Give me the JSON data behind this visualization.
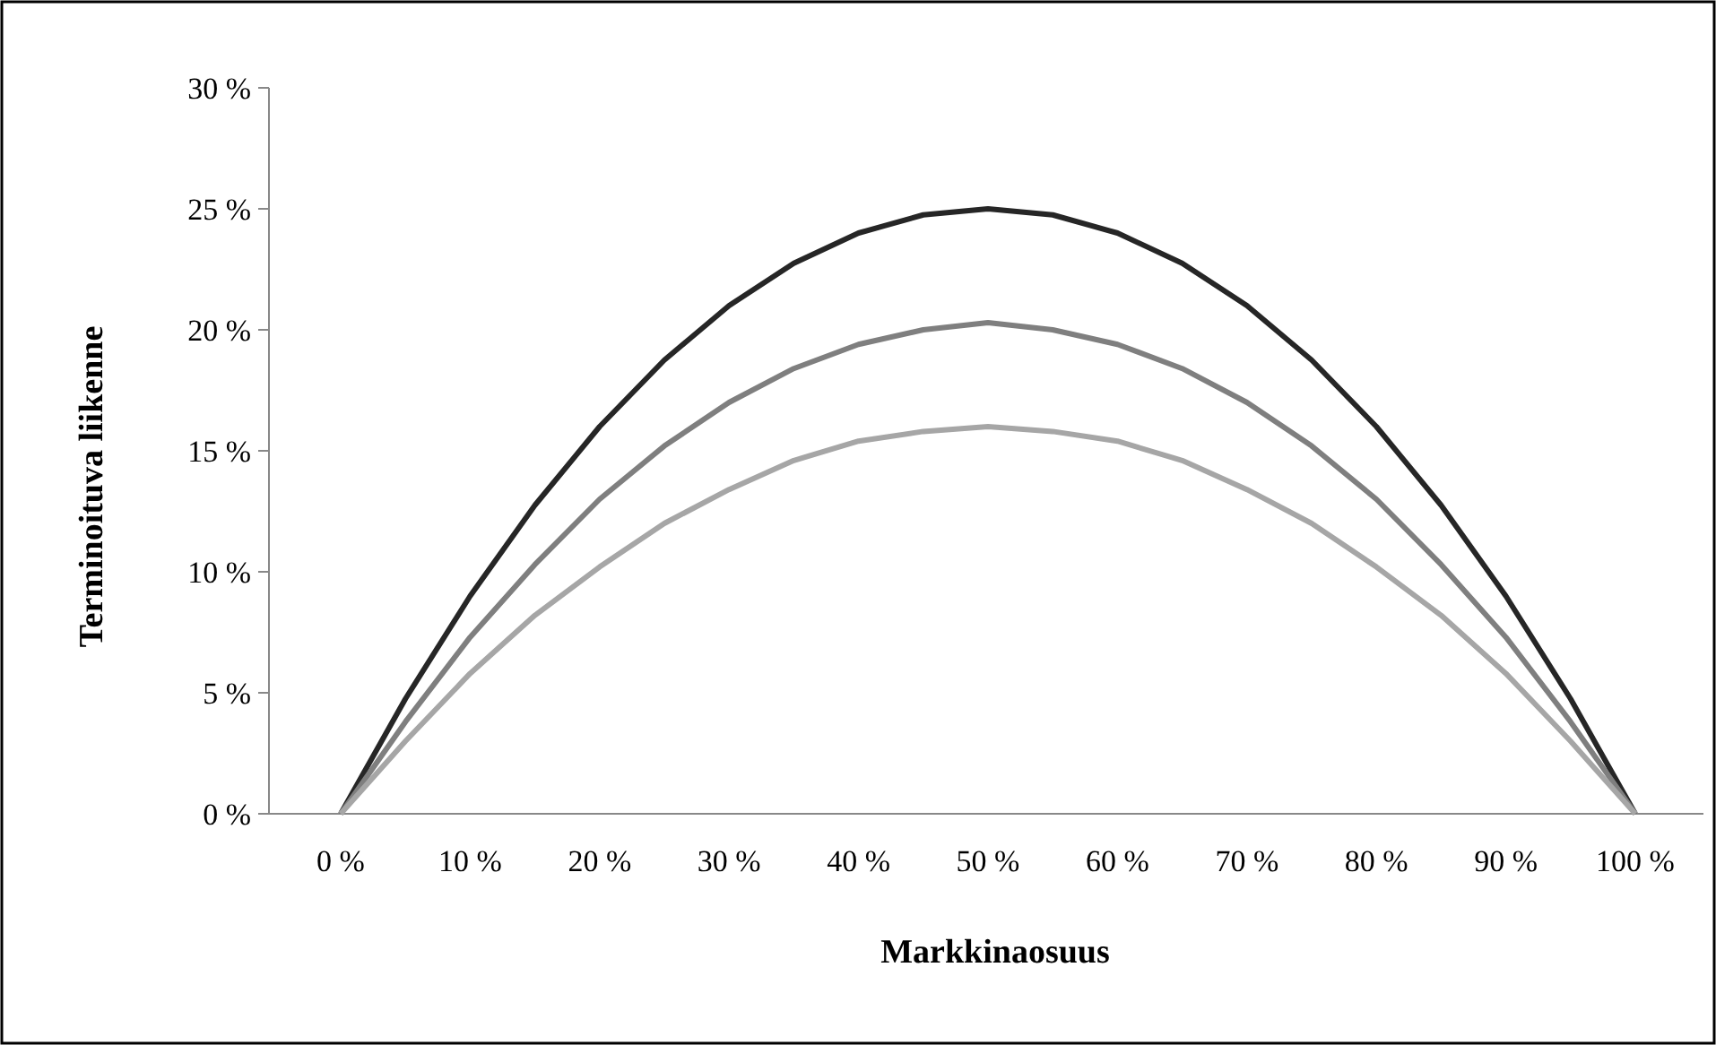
{
  "chart_data": {
    "type": "line",
    "xlabel": "Markkinaosuus",
    "ylabel": "Terminoituva liikenne",
    "categories": [
      "0 %",
      null,
      "10 %",
      null,
      "20 %",
      null,
      "30 %",
      null,
      "40 %",
      null,
      "50 %",
      null,
      "60 %",
      null,
      "70 %",
      null,
      "80 %",
      null,
      "90 %",
      null,
      "100 %"
    ],
    "series": [
      {
        "color": "#262626",
        "values": [
          0,
          4.75,
          9,
          12.75,
          16,
          18.75,
          21,
          22.75,
          24,
          24.75,
          25,
          24.75,
          24,
          22.75,
          21,
          18.75,
          16,
          12.75,
          9,
          4.75,
          0
        ]
      },
      {
        "color": "#7f7f7f",
        "values": [
          0,
          3.8,
          7.3,
          10.3,
          13,
          15.2,
          17,
          18.4,
          19.4,
          20,
          20.3,
          20,
          19.4,
          18.4,
          17,
          15.2,
          13,
          10.3,
          7.3,
          3.8,
          0
        ]
      },
      {
        "color": "#a6a6a6",
        "values": [
          0,
          3,
          5.8,
          8.2,
          10.2,
          12,
          13.4,
          14.6,
          15.4,
          15.8,
          16,
          15.8,
          15.4,
          14.6,
          13.4,
          12,
          10.2,
          8.2,
          5.8,
          3,
          0
        ]
      }
    ],
    "ylim": [
      0,
      30
    ],
    "yticks": [
      {
        "value": 0,
        "label": "0 %"
      },
      {
        "value": 5,
        "label": "5 %"
      },
      {
        "value": 10,
        "label": "10 %"
      },
      {
        "value": 15,
        "label": "15 %"
      },
      {
        "value": 20,
        "label": "20 %"
      },
      {
        "value": 25,
        "label": "25 %"
      },
      {
        "value": 30,
        "label": "30 %"
      }
    ],
    "grid": false,
    "marker": "none",
    "line_style": "solid"
  }
}
